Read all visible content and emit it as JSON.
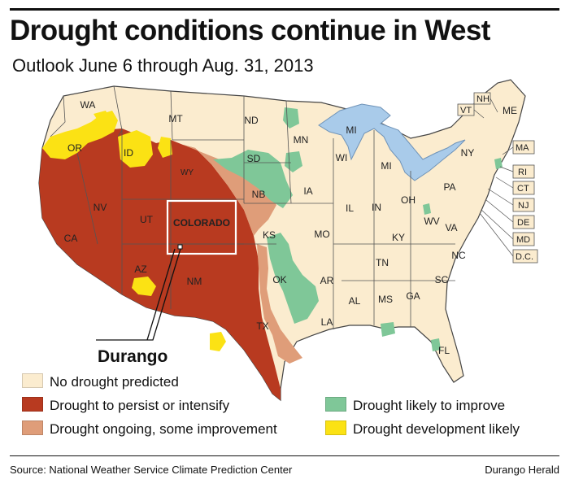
{
  "header": {
    "title": "Drought conditions continue in West",
    "subtitle": "Outlook June 6 through Aug. 31, 2013"
  },
  "colors": {
    "no_drought": "#fbeccf",
    "persist": "#b83a20",
    "ongoing_improvement": "#df9d79",
    "likely_improve": "#7fc798",
    "development": "#fbe214",
    "water": "#a9cbea",
    "border": "#555555"
  },
  "map": {
    "highlight_state": "COLORADO",
    "city_label": "Durango",
    "state_labels": [
      "WA",
      "OR",
      "ID",
      "MT",
      "WY",
      "ND",
      "SD",
      "NB",
      "NV",
      "UT",
      "CA",
      "AZ",
      "NM",
      "CO",
      "KS",
      "OK",
      "TX",
      "MN",
      "IA",
      "MO",
      "AR",
      "LA",
      "WI",
      "IL",
      "MI",
      "IN",
      "OH",
      "KY",
      "TN",
      "MS",
      "AL",
      "GA",
      "FL",
      "SC",
      "NC",
      "VA",
      "WV",
      "PA",
      "NY",
      "ME",
      "NH",
      "VT",
      "MA",
      "RI",
      "CT",
      "NJ",
      "DE",
      "MD",
      "D.C."
    ]
  },
  "legend": {
    "items": [
      {
        "label": "No drought predicted",
        "color": "#fbeccf"
      },
      {
        "label": "Drought to persist or intensify",
        "color": "#b83a20"
      },
      {
        "label": "Drought ongoing, some improvement",
        "color": "#df9d79"
      },
      {
        "label": "Drought likely to improve",
        "color": "#7fc798"
      },
      {
        "label": "Drought development likely",
        "color": "#fbe214"
      }
    ]
  },
  "footer": {
    "source": "Source: National Weather Service Climate Prediction Center",
    "credit": "Durango Herald"
  }
}
